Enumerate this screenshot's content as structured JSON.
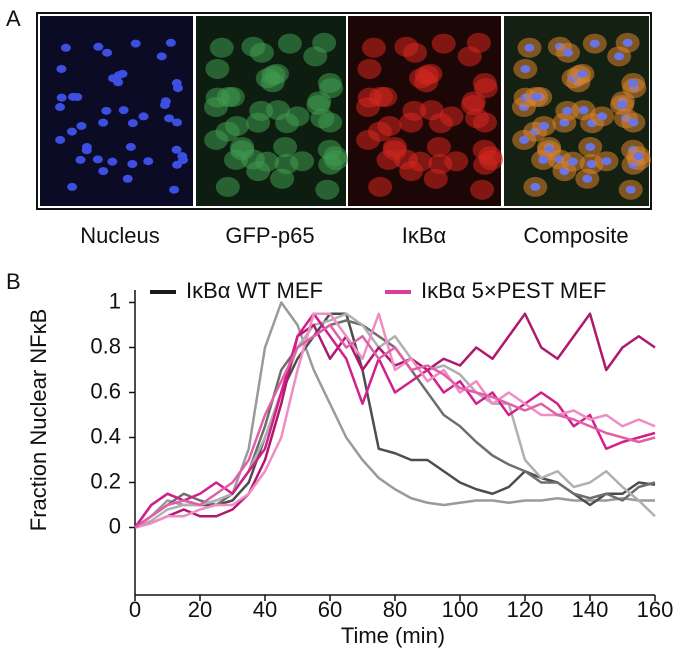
{
  "panel_a": {
    "label": "A",
    "captions": [
      "Nucleus",
      "GFP-p65",
      "IκBα",
      "Composite"
    ]
  },
  "chart_data": {
    "type": "line",
    "panel_label": "B",
    "x_label": "Time (min)",
    "y_label": "Fraction Nuclear NFκB",
    "xlim": [
      0,
      160
    ],
    "xticks": [
      0,
      20,
      40,
      60,
      80,
      100,
      120,
      140,
      160
    ],
    "ylim": [
      -0.3,
      1.1
    ],
    "yticks": [
      0,
      0.2,
      0.4,
      0.6,
      0.8,
      1
    ],
    "x": [
      0,
      5,
      10,
      15,
      20,
      25,
      30,
      35,
      40,
      45,
      50,
      55,
      60,
      65,
      70,
      75,
      80,
      85,
      90,
      95,
      100,
      105,
      110,
      115,
      120,
      125,
      130,
      135,
      140,
      145,
      150,
      155,
      160
    ],
    "series": [
      {
        "name": "IκBα WT MEF",
        "color": "#1a1a1a",
        "traces": [
          {
            "color": "#9a9a9a",
            "values": [
              0,
              0.05,
              0.12,
              0.1,
              0.1,
              0.12,
              0.15,
              0.35,
              0.8,
              1.0,
              0.9,
              0.7,
              0.55,
              0.4,
              0.3,
              0.22,
              0.17,
              0.13,
              0.11,
              0.1,
              0.11,
              0.12,
              0.12,
              0.11,
              0.12,
              0.12,
              0.13,
              0.12,
              0.12,
              0.12,
              0.13,
              0.12,
              0.12
            ]
          },
          {
            "color": "#4d4d4d",
            "values": [
              0,
              0.1,
              0.15,
              0.12,
              0.1,
              0.1,
              0.12,
              0.2,
              0.4,
              0.6,
              0.75,
              0.85,
              0.95,
              0.95,
              0.7,
              0.35,
              0.33,
              0.3,
              0.3,
              0.25,
              0.2,
              0.17,
              0.15,
              0.18,
              0.25,
              0.22,
              0.2,
              0.15,
              0.1,
              0.15,
              0.15,
              0.2,
              0.19
            ]
          },
          {
            "color": "#6e6e6e",
            "values": [
              0,
              0.05,
              0.1,
              0.15,
              0.12,
              0.1,
              0.15,
              0.25,
              0.45,
              0.7,
              0.8,
              0.85,
              0.9,
              0.92,
              0.9,
              0.85,
              0.8,
              0.7,
              0.6,
              0.5,
              0.45,
              0.38,
              0.32,
              0.28,
              0.25,
              0.2,
              0.2,
              0.15,
              0.13,
              0.15,
              0.12,
              0.18,
              0.2
            ]
          },
          {
            "color": "#b0b0b0",
            "values": [
              0,
              0.03,
              0.08,
              0.1,
              0.1,
              0.12,
              0.15,
              0.25,
              0.4,
              0.6,
              0.8,
              0.9,
              0.92,
              0.95,
              0.9,
              0.8,
              0.85,
              0.75,
              0.7,
              0.72,
              0.68,
              0.6,
              0.55,
              0.55,
              0.3,
              0.22,
              0.25,
              0.18,
              0.2,
              0.25,
              0.18,
              0.12,
              0.05
            ]
          }
        ]
      },
      {
        "name": "IκBα 5×PEST MEF",
        "color": "#d6409a",
        "traces": [
          {
            "color": "#b0186e",
            "values": [
              0,
              0.02,
              0.05,
              0.08,
              0.05,
              0.05,
              0.08,
              0.15,
              0.3,
              0.55,
              0.85,
              0.9,
              0.75,
              0.85,
              0.7,
              0.8,
              0.72,
              0.75,
              0.7,
              0.75,
              0.72,
              0.8,
              0.75,
              0.85,
              0.95,
              0.8,
              0.75,
              0.85,
              0.95,
              0.7,
              0.8,
              0.85,
              0.8
            ]
          },
          {
            "color": "#d21f8a",
            "values": [
              0,
              0.1,
              0.15,
              0.12,
              0.15,
              0.2,
              0.15,
              0.25,
              0.35,
              0.6,
              0.85,
              0.95,
              0.85,
              0.75,
              0.55,
              0.75,
              0.6,
              0.65,
              0.7,
              0.6,
              0.65,
              0.55,
              0.6,
              0.5,
              0.55,
              0.6,
              0.55,
              0.45,
              0.5,
              0.35,
              0.38,
              0.4,
              0.42
            ]
          },
          {
            "color": "#f08cc4",
            "values": [
              0,
              0.02,
              0.05,
              0.05,
              0.08,
              0.1,
              0.1,
              0.15,
              0.25,
              0.4,
              0.7,
              0.95,
              0.95,
              0.85,
              0.75,
              0.95,
              0.7,
              0.75,
              0.65,
              0.7,
              0.6,
              0.65,
              0.55,
              0.6,
              0.55,
              0.5,
              0.5,
              0.52,
              0.48,
              0.5,
              0.45,
              0.48,
              0.45
            ]
          },
          {
            "color": "#e060a8",
            "values": [
              0,
              0.05,
              0.1,
              0.12,
              0.1,
              0.15,
              0.2,
              0.3,
              0.5,
              0.65,
              0.8,
              0.85,
              0.9,
              0.8,
              0.85,
              0.75,
              0.8,
              0.7,
              0.72,
              0.68,
              0.62,
              0.6,
              0.58,
              0.55,
              0.52,
              0.55,
              0.5,
              0.48,
              0.45,
              0.42,
              0.4,
              0.38,
              0.4
            ]
          }
        ]
      }
    ]
  }
}
